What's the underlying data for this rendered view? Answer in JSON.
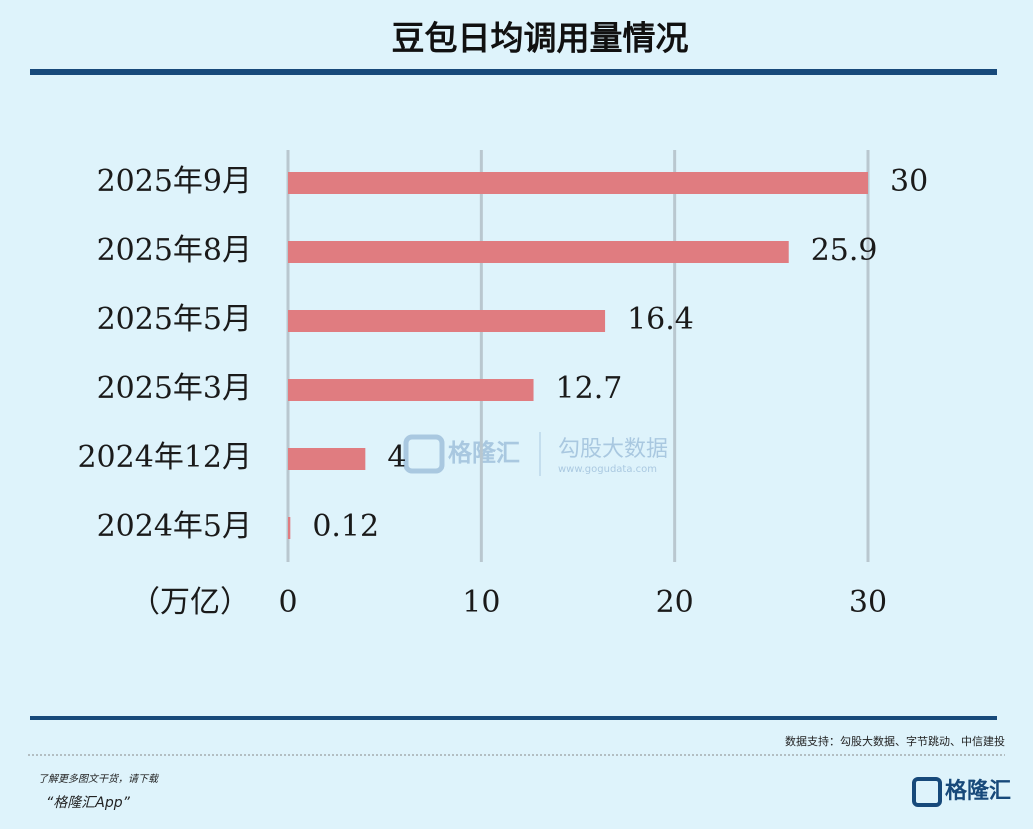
{
  "chart_data": {
    "type": "hbar",
    "title": "豆包日均调用量情况",
    "categories": [
      "2025年9月",
      "2025年8月",
      "2025年5月",
      "2025年3月",
      "2024年12月",
      "2024年5月"
    ],
    "values": [
      30,
      25.9,
      16.4,
      12.7,
      4,
      0.12
    ],
    "color": "#e07c80",
    "x_label": "（万亿）",
    "xlim": [
      0,
      30
    ],
    "xticks": [
      0,
      10,
      20,
      30
    ],
    "grid": true
  },
  "footer": {
    "source": "数据支持：勾股大数据、字节跳动、中信建投",
    "promo": "了解更多图文干货，请下载",
    "app": "“格隆汇App”",
    "logo": "格隆汇"
  },
  "watermark": {
    "brand": "格隆汇",
    "partner": "勾股大数据",
    "url": "www.gogudata.com"
  }
}
